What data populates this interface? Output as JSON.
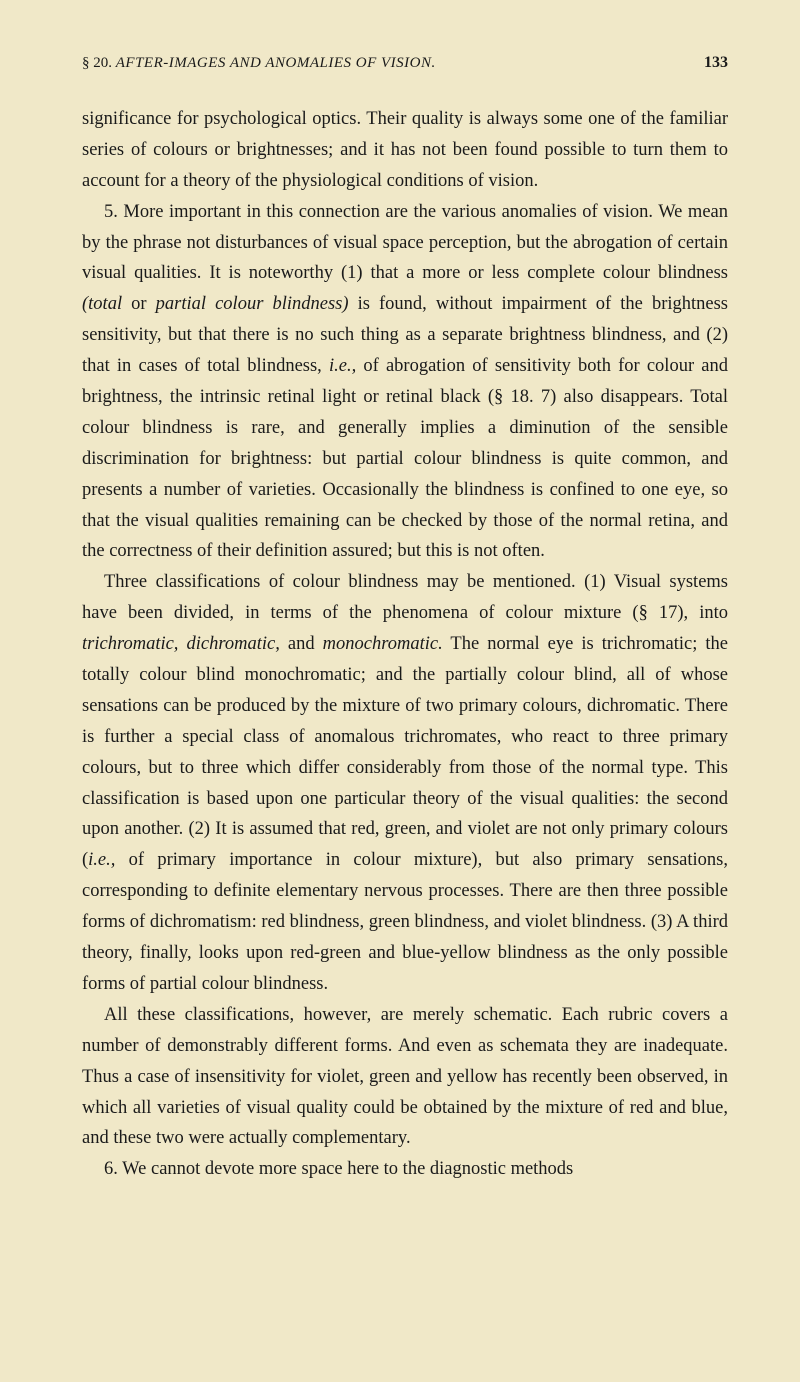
{
  "header": {
    "section": "§ 20.",
    "title": "AFTER-IMAGES AND ANOMALIES OF VISION.",
    "page": "133"
  },
  "paragraphs": {
    "p1": "significance for psychological optics. Their quality is always some one of the familiar series of colours or brightnesses; and it has not been found possible to turn them to account for a theory of the physiological conditions of vision.",
    "p2_prefix": "5. More important in this connection are the various anomalies of vision. We mean by the phrase not disturbances of visual space perception, but the abrogation of certain visual qualities. It is noteworthy (1) that a more or less complete colour blindness ",
    "p2_italic1": "(total",
    "p2_mid1": " or ",
    "p2_italic2": "partial colour blindness)",
    "p2_mid2": " is found, without impairment of the brightness sensitivity, but that there is no such thing as a separate brightness blindness, and (2) that in cases of total blindness, ",
    "p2_italic3": "i.e.,",
    "p2_suffix": " of abrogation of sensitivity both for colour and brightness, the intrinsic retinal light or retinal black (§ 18. 7) also disappears. Total colour blindness is rare, and generally implies a diminution of the sensible discrimination for brightness: but partial colour blindness is quite common, and presents a number of varieties. Occasionally the blindness is confined to one eye, so that the visual qualities remaining can be checked by those of the normal retina, and the correctness of their definition assured; but this is not often.",
    "p3_prefix": "Three classifications of colour blindness may be mentioned. (1) Visual systems have been divided, in terms of the phenomena of colour mixture (§ 17), into ",
    "p3_italic1": "trichromatic, dichromatic,",
    "p3_mid1": " and ",
    "p3_italic2": "monochromatic.",
    "p3_mid2": " The normal eye is trichromatic; the totally colour blind monochromatic; and the partially colour blind, all of whose sensations can be produced by the mixture of two primary colours, dichromatic. There is further a special class of anomalous trichromates, who react to three primary colours, but to three which differ considerably from those of the normal type. This classification is based upon one particular theory of the visual qualities: the second upon another. (2) It is assumed that red, green, and violet are not only primary colours (",
    "p3_italic3": "i.e.,",
    "p3_suffix": " of primary importance in colour mixture), but also primary sensations, corresponding to definite elementary nervous processes. There are then three possible forms of dichromatism: red blindness, green blindness, and violet blindness. (3) A third theory, finally, looks upon red-green and blue-yellow blindness as the only possible forms of partial colour blindness.",
    "p4": "All these classifications, however, are merely schematic. Each rubric covers a number of demonstrably different forms. And even as schemata they are inadequate. Thus a case of insensitivity for violet, green and yellow has recently been observed, in which all varieties of visual quality could be obtained by the mixture of red and blue, and these two were actually complementary.",
    "p5": "6. We cannot devote more space here to the diagnostic methods"
  }
}
